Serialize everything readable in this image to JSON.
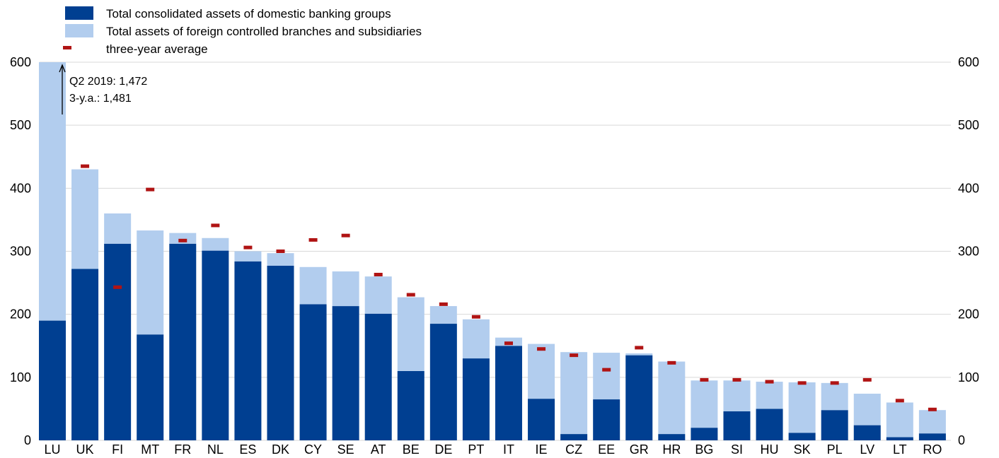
{
  "chart_data": {
    "type": "bar",
    "stacked": true,
    "categories": [
      "LU",
      "UK",
      "FI",
      "MT",
      "FR",
      "NL",
      "ES",
      "DK",
      "CY",
      "SE",
      "AT",
      "BE",
      "DE",
      "PT",
      "IT",
      "IE",
      "CZ",
      "EE",
      "GR",
      "HR",
      "BG",
      "SI",
      "HU",
      "SK",
      "PL",
      "LV",
      "LT",
      "RO"
    ],
    "series": [
      {
        "name": "Total consolidated assets of domestic banking groups",
        "color": "#003f91",
        "values": [
          190,
          272,
          312,
          168,
          312,
          301,
          284,
          277,
          216,
          213,
          201,
          110,
          185,
          130,
          150,
          66,
          10,
          65,
          135,
          10,
          20,
          46,
          50,
          12,
          48,
          24,
          5,
          11
        ]
      },
      {
        "name": "Total assets of foreign controlled branches and subsidiaries",
        "color": "#b2cdee",
        "values": [
          410,
          158,
          48,
          165,
          17,
          20,
          16,
          20,
          59,
          55,
          59,
          117,
          28,
          62,
          13,
          87,
          130,
          74,
          3,
          115,
          75,
          49,
          43,
          80,
          43,
          50,
          55,
          37
        ]
      }
    ],
    "markers": {
      "name": "three-year average",
      "color": "#b01414",
      "values": [
        null,
        435,
        243,
        398,
        317,
        341,
        306,
        300,
        318,
        325,
        263,
        231,
        216,
        196,
        154,
        145,
        135,
        112,
        147,
        123,
        96,
        96,
        93,
        91,
        91,
        96,
        63,
        49
      ]
    },
    "ylim": [
      0,
      600
    ],
    "yticks": [
      0,
      100,
      200,
      300,
      400,
      500,
      600
    ],
    "grid": true,
    "legend_position": "top-left",
    "annotation": {
      "line1": "Q2 2019: 1,472",
      "line2": "3-y.a.: 1,481"
    }
  }
}
